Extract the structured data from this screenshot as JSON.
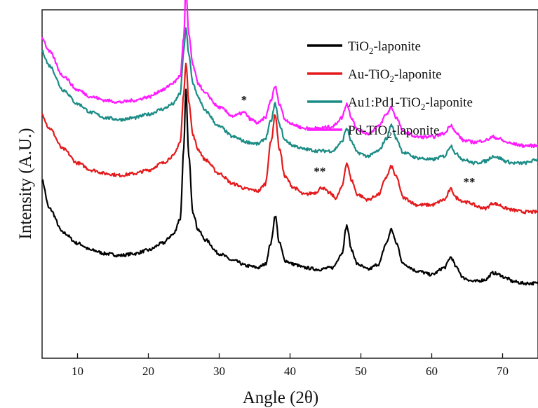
{
  "chart_data": {
    "type": "line",
    "xlabel": "Angle (2θ)",
    "ylabel": "Intensity (A.U.)",
    "xlim": [
      5,
      75
    ],
    "ylim": [
      0,
      100
    ],
    "y_ticks_labeled": false,
    "xticks": [
      10,
      20,
      30,
      40,
      50,
      60,
      70
    ],
    "grid": false,
    "legend_position": "top-right",
    "series": [
      {
        "name": "TiO2-laponite",
        "label_main": "TiO",
        "label_sub": "2",
        "label_tail": "-laponite",
        "color": "#000000",
        "x": [
          5,
          6,
          8,
          10,
          12,
          14,
          16,
          18,
          20,
          22,
          23.5,
          24.5,
          25.0,
          25.3,
          25.7,
          26.3,
          27,
          28,
          30,
          32,
          34,
          35.5,
          36.5,
          37.3,
          37.9,
          38.5,
          39.3,
          40.5,
          42,
          44,
          46,
          47.3,
          48.0,
          48.7,
          49.5,
          51,
          52.5,
          53.6,
          54.3,
          55.0,
          56,
          58,
          60,
          61.8,
          62.7,
          63.5,
          64.5,
          66,
          67.5,
          68.7,
          69.5,
          70.5,
          71.5,
          73,
          75
        ],
        "y": [
          51,
          43,
          36,
          33,
          31,
          30,
          29.5,
          30,
          31,
          33,
          35.5,
          40,
          60,
          77,
          58,
          42,
          37,
          34,
          30,
          28,
          26.5,
          26,
          27,
          33,
          41,
          33,
          28,
          27,
          26,
          25.5,
          26,
          30,
          38,
          31,
          27,
          25.5,
          27,
          33,
          37,
          33,
          27,
          25,
          24,
          26,
          29,
          26,
          23,
          22,
          22.5,
          24.5,
          24,
          23,
          22,
          21.5,
          21.5
        ]
      },
      {
        "name": "Au-TiO2-laponite",
        "label_main": "Au-TiO",
        "label_sub": "2",
        "label_tail": "-laponite",
        "color": "#e41a1c",
        "x": [
          5,
          6,
          8,
          10,
          12,
          14,
          16,
          18,
          20,
          22,
          23.5,
          24.5,
          25.0,
          25.3,
          25.7,
          26.3,
          27,
          28,
          30,
          32,
          34,
          35.5,
          36.5,
          37.3,
          37.9,
          38.5,
          39.3,
          40.5,
          42,
          43.5,
          44.5,
          45.5,
          46.5,
          47.3,
          48.0,
          48.7,
          49.5,
          51,
          52.5,
          53.6,
          54.3,
          55.0,
          56,
          58,
          60,
          61.8,
          62.7,
          63.5,
          64.5,
          65.5,
          66.5,
          67.5,
          68.7,
          69.5,
          70.5,
          71.5,
          73,
          75
        ],
        "y": [
          70,
          66,
          60,
          56,
          54,
          53,
          52.5,
          53,
          54,
          56,
          58,
          62,
          76,
          85,
          74,
          64,
          60,
          57,
          53,
          50,
          48.5,
          48,
          50,
          62,
          70,
          60,
          52,
          49,
          47,
          47.5,
          49,
          47.5,
          46,
          49,
          56,
          51,
          47,
          45.5,
          47,
          52,
          55,
          52,
          46,
          44,
          44,
          45.5,
          48.5,
          46,
          45,
          44.5,
          43.5,
          43,
          44.5,
          44,
          43,
          42.5,
          42,
          42
        ]
      },
      {
        "name": "Au1:Pd1-TiO2-laponite",
        "label_main": "Au1:Pd1-TiO",
        "label_sub": "2",
        "label_tail": "-laponite",
        "color": "#1a8c85",
        "x": [
          5,
          6,
          8,
          10,
          12,
          14,
          16,
          18,
          20,
          22,
          23.5,
          24.5,
          25.0,
          25.3,
          25.7,
          26.3,
          27,
          28,
          30,
          32,
          34,
          35.5,
          36.5,
          37.3,
          37.9,
          38.5,
          39.3,
          40.5,
          42,
          44,
          46,
          47.3,
          48.0,
          48.7,
          49.5,
          51,
          52.5,
          53.6,
          54.3,
          55.0,
          56,
          58,
          60,
          61.8,
          62.7,
          63.5,
          64.5,
          66,
          67.5,
          68.7,
          69.5,
          70.5,
          71.5,
          73,
          75
        ],
        "y": [
          88,
          84,
          77,
          73,
          70.5,
          69,
          68.5,
          69,
          70,
          71.5,
          73,
          76,
          88,
          95,
          87,
          79,
          75,
          71,
          66.5,
          63.5,
          62,
          61.5,
          63,
          68,
          73,
          67,
          62.5,
          61,
          60,
          59.5,
          59.5,
          62,
          66,
          62,
          59,
          58,
          59.5,
          63,
          67,
          63,
          59,
          57.5,
          57,
          58,
          61,
          58.5,
          57,
          56,
          56.5,
          58,
          57.5,
          56.5,
          56,
          56,
          57
        ]
      },
      {
        "name": "Pd-TiO2-laponite",
        "label_main": "Pd-TiO",
        "label_sub": "2",
        "label_tail": "-laponite",
        "color": "#ff1aff",
        "x": [
          5,
          6,
          8,
          10,
          12,
          14,
          16,
          18,
          20,
          22,
          23.5,
          24.5,
          25.0,
          25.3,
          25.7,
          26.3,
          27,
          28,
          30,
          32,
          33.5,
          34.5,
          35.5,
          36.5,
          37.3,
          37.9,
          38.5,
          39.3,
          40.5,
          42,
          44,
          46,
          47.3,
          48.0,
          48.7,
          49.5,
          51,
          52.5,
          53.6,
          54.3,
          55.0,
          56,
          58,
          60,
          61.8,
          62.7,
          63.5,
          64.5,
          66,
          67.5,
          68.7,
          69.5,
          70.5,
          71.5,
          73,
          75
        ],
        "y": [
          92,
          88,
          81,
          77,
          75,
          74,
          73.5,
          74,
          75,
          77,
          79,
          81,
          92,
          106,
          93,
          84,
          79,
          76,
          72,
          69.5,
          70.5,
          68.5,
          67.5,
          69,
          74,
          78,
          73,
          68.5,
          67,
          66,
          66,
          66.5,
          69,
          73,
          69,
          65.5,
          64.5,
          66.5,
          70,
          72,
          69,
          65,
          63.5,
          63.5,
          64.5,
          67,
          64.5,
          62.5,
          62,
          62.5,
          63.5,
          63,
          62,
          61.5,
          61,
          61
        ]
      }
    ],
    "annotations": [
      {
        "text": "*",
        "x": 33.5,
        "y": 73
      },
      {
        "text": "**",
        "x": 44.2,
        "y": 52.5
      },
      {
        "text": "**",
        "x": 65.3,
        "y": 49.5
      }
    ]
  }
}
